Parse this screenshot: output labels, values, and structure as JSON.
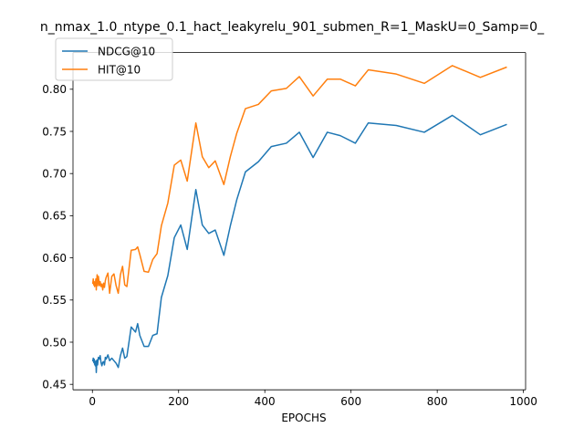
{
  "chart_data": {
    "type": "line",
    "title": "n_nmax_1.0_ntype_0.1_hact_leakyrelu_901_submen_R=1_MaskU=0_Samp=0_",
    "xlabel": "EPOCHS",
    "ylabel": "",
    "xlim": [
      -45,
      1005
    ],
    "ylim": [
      0.4435,
      0.8435
    ],
    "xticks": [
      0,
      200,
      400,
      600,
      800,
      1000
    ],
    "yticks": [
      0.45,
      0.5,
      0.55,
      0.6,
      0.65,
      0.7,
      0.75,
      0.8
    ],
    "ytick_labels": [
      "0.45",
      "0.50",
      "0.55",
      "0.60",
      "0.65",
      "0.70",
      "0.75",
      "0.80"
    ],
    "grid": false,
    "legend": "top-left",
    "series": [
      {
        "name": "NDCG@10",
        "color": "#1f77b4",
        "x": [
          1,
          2,
          3,
          4,
          5,
          6,
          7,
          8,
          9,
          10,
          11,
          12,
          13,
          14,
          16,
          18,
          20,
          22,
          24,
          26,
          28,
          30,
          32,
          36,
          40,
          45,
          50,
          55,
          60,
          65,
          70,
          75,
          80,
          90,
          100,
          105,
          110,
          120,
          130,
          140,
          150,
          160,
          175,
          190,
          205,
          220,
          240,
          255,
          270,
          285,
          305,
          320,
          335,
          355,
          385,
          415,
          450,
          480,
          512,
          545,
          575,
          610,
          640,
          705,
          770,
          835,
          900,
          960
        ],
        "y": [
          0.478,
          0.481,
          0.476,
          0.48,
          0.474,
          0.473,
          0.472,
          0.478,
          0.464,
          0.474,
          0.479,
          0.473,
          0.478,
          0.482,
          0.48,
          0.484,
          0.476,
          0.472,
          0.476,
          0.477,
          0.473,
          0.482,
          0.48,
          0.485,
          0.478,
          0.481,
          0.478,
          0.475,
          0.47,
          0.484,
          0.493,
          0.481,
          0.483,
          0.518,
          0.512,
          0.522,
          0.508,
          0.495,
          0.495,
          0.508,
          0.51,
          0.553,
          0.579,
          0.624,
          0.639,
          0.61,
          0.681,
          0.639,
          0.629,
          0.633,
          0.603,
          0.638,
          0.669,
          0.702,
          0.714,
          0.732,
          0.736,
          0.749,
          0.719,
          0.749,
          0.745,
          0.736,
          0.76,
          0.757,
          0.749,
          0.769,
          0.746,
          0.758
        ]
      },
      {
        "name": "HIT@10",
        "color": "#ff7f0e",
        "x": [
          1,
          2,
          3,
          4,
          5,
          6,
          7,
          8,
          9,
          10,
          11,
          12,
          13,
          14,
          16,
          18,
          20,
          22,
          24,
          26,
          28,
          30,
          32,
          36,
          40,
          45,
          50,
          55,
          60,
          65,
          70,
          75,
          80,
          90,
          100,
          105,
          110,
          120,
          130,
          140,
          150,
          160,
          175,
          190,
          205,
          220,
          240,
          255,
          270,
          285,
          305,
          320,
          335,
          355,
          385,
          415,
          450,
          480,
          512,
          545,
          575,
          610,
          640,
          705,
          770,
          835,
          900,
          960
        ],
        "y": [
          0.57,
          0.575,
          0.568,
          0.572,
          0.566,
          0.568,
          0.569,
          0.575,
          0.562,
          0.573,
          0.58,
          0.567,
          0.572,
          0.578,
          0.567,
          0.572,
          0.566,
          0.569,
          0.562,
          0.57,
          0.565,
          0.573,
          0.577,
          0.582,
          0.558,
          0.578,
          0.581,
          0.567,
          0.558,
          0.58,
          0.59,
          0.568,
          0.566,
          0.609,
          0.61,
          0.613,
          0.604,
          0.584,
          0.583,
          0.598,
          0.605,
          0.638,
          0.665,
          0.71,
          0.716,
          0.691,
          0.76,
          0.72,
          0.707,
          0.715,
          0.687,
          0.72,
          0.748,
          0.777,
          0.782,
          0.798,
          0.801,
          0.815,
          0.792,
          0.812,
          0.812,
          0.804,
          0.823,
          0.818,
          0.807,
          0.828,
          0.814,
          0.826
        ]
      }
    ]
  }
}
